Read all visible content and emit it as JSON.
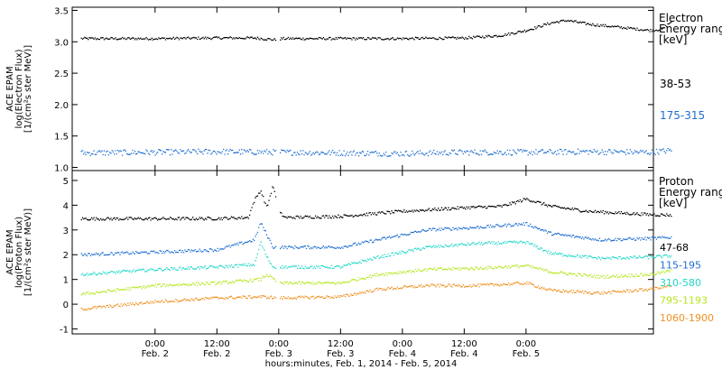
{
  "chart_data": [
    {
      "type": "scatter",
      "panel": "electron",
      "ylabel_lines": [
        "ACE EPAM",
        "log(Electron Flux)",
        "[1/(cm²s ster MeV)]"
      ],
      "ylim": [
        0.95,
        3.55
      ],
      "yticks": [
        1.0,
        1.5,
        2.0,
        2.5,
        3.0,
        3.5
      ],
      "ytick_labels": [
        "1.0",
        "1.5",
        "2.0",
        "2.5",
        "3.0",
        "3.5"
      ],
      "legend_title_lines": [
        "Electron",
        "Energy range",
        "[keV]"
      ],
      "series": [
        {
          "name": "38-53",
          "color": "#000000",
          "points": [
            [
              -0.6,
              3.05
            ],
            [
              0.0,
              3.05
            ],
            [
              0.5,
              3.06
            ],
            [
              0.8,
              3.06
            ],
            [
              0.98,
              3.03
            ],
            [
              1.02,
              3.05
            ],
            [
              1.5,
              3.05
            ],
            [
              2.0,
              3.05
            ],
            [
              2.5,
              3.06
            ],
            [
              2.8,
              3.1
            ],
            [
              3.0,
              3.18
            ],
            [
              3.2,
              3.3
            ],
            [
              3.33,
              3.34
            ],
            [
              3.5,
              3.28
            ],
            [
              3.8,
              3.22
            ],
            [
              4.0,
              3.18
            ],
            [
              4.1,
              3.2
            ],
            [
              4.17,
              3.32
            ]
          ]
        },
        {
          "name": "175-315",
          "color": "#1f6fd0",
          "points": [
            [
              -0.6,
              1.23
            ],
            [
              0.0,
              1.24
            ],
            [
              0.5,
              1.25
            ],
            [
              1.0,
              1.24
            ],
            [
              1.5,
              1.23
            ],
            [
              2.0,
              1.22
            ],
            [
              2.5,
              1.24
            ],
            [
              3.0,
              1.24
            ],
            [
              3.5,
              1.25
            ],
            [
              4.0,
              1.24
            ],
            [
              4.17,
              1.27
            ]
          ]
        }
      ]
    },
    {
      "type": "scatter",
      "panel": "proton",
      "ylabel_lines": [
        "ACE EPAM",
        "log(Proton Flux)",
        "[1/(cm²s ster MeV)]"
      ],
      "ylim": [
        -1.2,
        5.4
      ],
      "yticks": [
        -1,
        0,
        1,
        2,
        3,
        4,
        5
      ],
      "ytick_labels": [
        "-1",
        "0",
        "1",
        "2",
        "3",
        "4",
        "5"
      ],
      "legend_title_lines": [
        "Proton",
        "Energy range",
        "[keV]"
      ],
      "series": [
        {
          "name": "47-68",
          "color": "#000000",
          "points": [
            [
              -0.6,
              3.45
            ],
            [
              0.0,
              3.45
            ],
            [
              0.5,
              3.46
            ],
            [
              0.75,
              3.5
            ],
            [
              0.8,
              4.2
            ],
            [
              0.85,
              4.6
            ],
            [
              0.9,
              3.9
            ],
            [
              0.95,
              4.8
            ],
            [
              1.0,
              3.7
            ],
            [
              1.05,
              3.5
            ],
            [
              1.5,
              3.55
            ],
            [
              2.0,
              3.75
            ],
            [
              2.5,
              3.9
            ],
            [
              2.8,
              3.95
            ],
            [
              3.0,
              4.25
            ],
            [
              3.2,
              3.95
            ],
            [
              3.5,
              3.75
            ],
            [
              4.0,
              3.62
            ],
            [
              4.17,
              3.6
            ]
          ]
        },
        {
          "name": "115-195",
          "color": "#1f6fd0",
          "points": [
            [
              -0.6,
              2.0
            ],
            [
              0.0,
              2.1
            ],
            [
              0.5,
              2.2
            ],
            [
              0.8,
              2.6
            ],
            [
              0.85,
              3.3
            ],
            [
              0.9,
              2.8
            ],
            [
              0.95,
              2.3
            ],
            [
              1.5,
              2.3
            ],
            [
              1.8,
              2.6
            ],
            [
              2.2,
              3.0
            ],
            [
              2.6,
              3.1
            ],
            [
              3.0,
              3.25
            ],
            [
              3.2,
              2.85
            ],
            [
              3.6,
              2.6
            ],
            [
              4.0,
              2.65
            ],
            [
              4.17,
              2.7
            ]
          ]
        },
        {
          "name": "310-580",
          "color": "#20d8c8",
          "points": [
            [
              -0.6,
              1.2
            ],
            [
              0.0,
              1.4
            ],
            [
              0.5,
              1.5
            ],
            [
              0.8,
              1.6
            ],
            [
              0.85,
              2.5
            ],
            [
              0.9,
              1.9
            ],
            [
              0.95,
              1.5
            ],
            [
              1.5,
              1.5
            ],
            [
              1.8,
              1.9
            ],
            [
              2.2,
              2.3
            ],
            [
              2.6,
              2.45
            ],
            [
              3.0,
              2.5
            ],
            [
              3.2,
              2.05
            ],
            [
              3.6,
              1.85
            ],
            [
              4.0,
              1.9
            ],
            [
              4.17,
              1.95
            ]
          ]
        },
        {
          "name": "795-1193",
          "color": "#b5e61d",
          "points": [
            [
              -0.6,
              0.4
            ],
            [
              0.0,
              0.75
            ],
            [
              0.5,
              0.85
            ],
            [
              0.85,
              1.0
            ],
            [
              0.9,
              1.2
            ],
            [
              1.0,
              0.85
            ],
            [
              1.5,
              0.85
            ],
            [
              1.8,
              1.2
            ],
            [
              2.2,
              1.4
            ],
            [
              2.6,
              1.45
            ],
            [
              3.0,
              1.55
            ],
            [
              3.2,
              1.3
            ],
            [
              3.6,
              1.1
            ],
            [
              4.0,
              1.2
            ],
            [
              4.17,
              1.35
            ]
          ]
        },
        {
          "name": "1060-1900",
          "color": "#f0901e",
          "points": [
            [
              -0.6,
              -0.2
            ],
            [
              0.0,
              0.1
            ],
            [
              0.5,
              0.25
            ],
            [
              0.85,
              0.3
            ],
            [
              1.0,
              0.25
            ],
            [
              1.5,
              0.3
            ],
            [
              1.8,
              0.6
            ],
            [
              2.2,
              0.75
            ],
            [
              2.6,
              0.75
            ],
            [
              3.0,
              0.85
            ],
            [
              3.2,
              0.55
            ],
            [
              3.6,
              0.45
            ],
            [
              4.0,
              0.6
            ],
            [
              4.17,
              0.75
            ]
          ]
        }
      ]
    }
  ],
  "x_axis": {
    "xlim": [
      -0.67,
      4.03
    ],
    "tick_times": [
      "0:00",
      "12:00",
      "0:00",
      "12:00",
      "0:00",
      "12:00",
      "0:00"
    ],
    "tick_dates": [
      "Feb. 2",
      "Feb. 2",
      "Feb. 3",
      "Feb. 3",
      "Feb. 4",
      "Feb. 4",
      "Feb. 5"
    ],
    "tick_values": [
      0,
      0.5,
      1.0,
      1.5,
      2.0,
      2.5,
      3.0
    ],
    "xlabel": "hours:minutes, Feb.  1, 2014 - Feb.  5, 2014"
  }
}
